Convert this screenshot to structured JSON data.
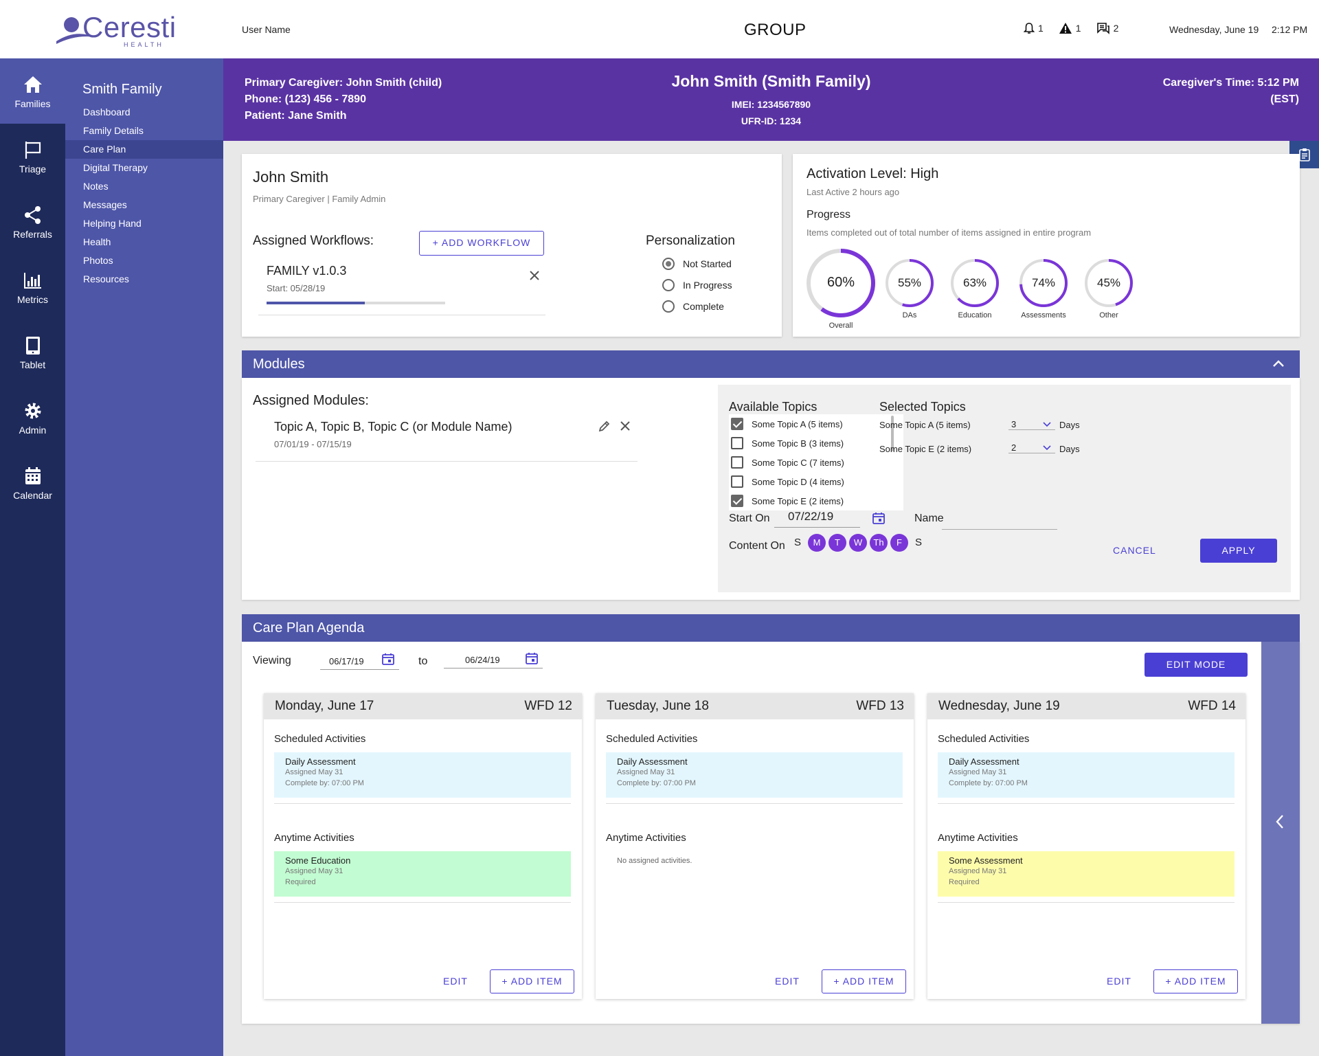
{
  "app": {
    "logo_text": "Ceresti",
    "logo_sub": "HEALTH",
    "user_name": "User Name",
    "title": "GROUP",
    "notifications_count": "1",
    "alerts_count": "1",
    "messages_count": "2",
    "date": "Wednesday, June 19",
    "time": "2:12 PM"
  },
  "rail": {
    "items": [
      {
        "label": "Families",
        "icon": "home-icon"
      },
      {
        "label": "Triage",
        "icon": "flag-icon"
      },
      {
        "label": "Referrals",
        "icon": "share-icon"
      },
      {
        "label": "Metrics",
        "icon": "bar-chart-icon"
      },
      {
        "label": "Tablet",
        "icon": "tablet-icon"
      },
      {
        "label": "Admin",
        "icon": "gear-icon"
      },
      {
        "label": "Calendar",
        "icon": "calendar-icon"
      }
    ]
  },
  "subnav": {
    "title": "Smith Family",
    "items": [
      "Dashboard",
      "Family Details",
      "Care Plan",
      "Digital Therapy",
      "Notes",
      "Messages",
      "Helping Hand",
      "Health",
      "Photos",
      "Resources"
    ],
    "active": "Care Plan"
  },
  "family_header": {
    "caregiver": "Primary Caregiver: John Smith (child)",
    "phone": "Phone: (123) 456 - 7890",
    "patient": "Patient: Jane Smith",
    "name": "John Smith (Smith Family)",
    "imei": "IMEI: 1234567890",
    "ufr": "UFR-ID: 1234",
    "caregiver_time": "Caregiver's Time: 5:12 PM",
    "timezone": "(EST)"
  },
  "profile": {
    "name": "John Smith",
    "role": "Primary Caregiver | Family Admin",
    "assigned_label": "Assigned Workflows:",
    "add_workflow": "+ ADD WORKFLOW",
    "workflow_name": "FAMILY v1.0.3",
    "workflow_start": "Start: 05/28/19",
    "workflow_progress": 0.55,
    "personalization_title": "Personalization",
    "personalization_options": [
      "Not Started",
      "In Progress",
      "Complete"
    ],
    "personalization_selected": "Not Started"
  },
  "activation": {
    "title": "Activation Level: High",
    "last_active": "Last Active 2 hours ago",
    "progress_title": "Progress",
    "progress_sub": "Items completed out of total number of items assigned in entire program",
    "rings": [
      {
        "label": "Overall",
        "value": 60,
        "text": "60%"
      },
      {
        "label": "DAs",
        "value": 55,
        "text": "55%"
      },
      {
        "label": "Education",
        "value": 63,
        "text": "63%"
      },
      {
        "label": "Assessments",
        "value": 74,
        "text": "74%"
      },
      {
        "label": "Other",
        "value": 45,
        "text": "45%"
      }
    ],
    "ring_color": "#7a35d8"
  },
  "modules": {
    "title": "Modules",
    "assigned_label": "Assigned Modules:",
    "topic": "Topic A, Topic B, Topic C (or Module Name)",
    "dates": "07/01/19 - 07/15/19",
    "available_title": "Available Topics",
    "available": [
      {
        "label": "Some Topic A (5 items)",
        "checked": true
      },
      {
        "label": "Some Topic B (3 items)",
        "checked": false
      },
      {
        "label": "Some Topic C (7 items)",
        "checked": false
      },
      {
        "label": "Some Topic D (4 items)",
        "checked": false
      },
      {
        "label": "Some Topic E (2 items)",
        "checked": true
      }
    ],
    "selected_title": "Selected Topics",
    "selected": [
      {
        "label": "Some Topic A (5 items)",
        "days": "3",
        "unit": "Days"
      },
      {
        "label": "Some Topic E (2 items)",
        "days": "2",
        "unit": "Days"
      }
    ],
    "start_label": "Start On",
    "start_value": "07/22/19",
    "name_label": "Name",
    "content_label": "Content On",
    "days": [
      {
        "label": "S",
        "on": false
      },
      {
        "label": "M",
        "on": true
      },
      {
        "label": "T",
        "on": true
      },
      {
        "label": "W",
        "on": true
      },
      {
        "label": "Th",
        "on": true
      },
      {
        "label": "F",
        "on": true
      },
      {
        "label": "S",
        "on": false
      }
    ],
    "cancel": "CANCEL",
    "apply": "APPLY"
  },
  "agenda": {
    "title": "Care Plan Agenda",
    "viewing_label": "Viewing",
    "from": "06/17/19",
    "to_label": "to",
    "to": "06/24/19",
    "edit_mode": "EDIT MODE",
    "scheduled_label": "Scheduled Activities",
    "anytime_label": "Anytime Activities",
    "edit_label": "EDIT",
    "add_label": "+ ADD ITEM",
    "days": [
      {
        "date": "Monday, June 17",
        "wfd": "WFD 12",
        "scheduled": {
          "name": "Daily Assessment",
          "assigned": "Assigned May 31",
          "due": "Complete by: 07:00 PM",
          "color": "#e3f6fd"
        },
        "anytime": {
          "name": "Some Education",
          "assigned": "Assigned May 31",
          "note": "Required",
          "color": "#c2fcd2"
        }
      },
      {
        "date": "Tuesday, June 18",
        "wfd": "WFD 13",
        "scheduled": {
          "name": "Daily Assessment",
          "assigned": "Assigned May 31",
          "due": "Complete by: 07:00 PM",
          "color": "#e3f6fd"
        },
        "anytime_empty": "No assigned activities."
      },
      {
        "date": "Wednesday, June 19",
        "wfd": "WFD 14",
        "scheduled": {
          "name": "Daily Assessment",
          "assigned": "Assigned May 31",
          "due": "Complete by: 07:00 PM",
          "color": "#e3f6fd"
        },
        "anytime": {
          "name": "Some Assessment",
          "assigned": "Assigned May 31",
          "note": "Required",
          "color": "#fdfcab"
        }
      }
    ]
  }
}
